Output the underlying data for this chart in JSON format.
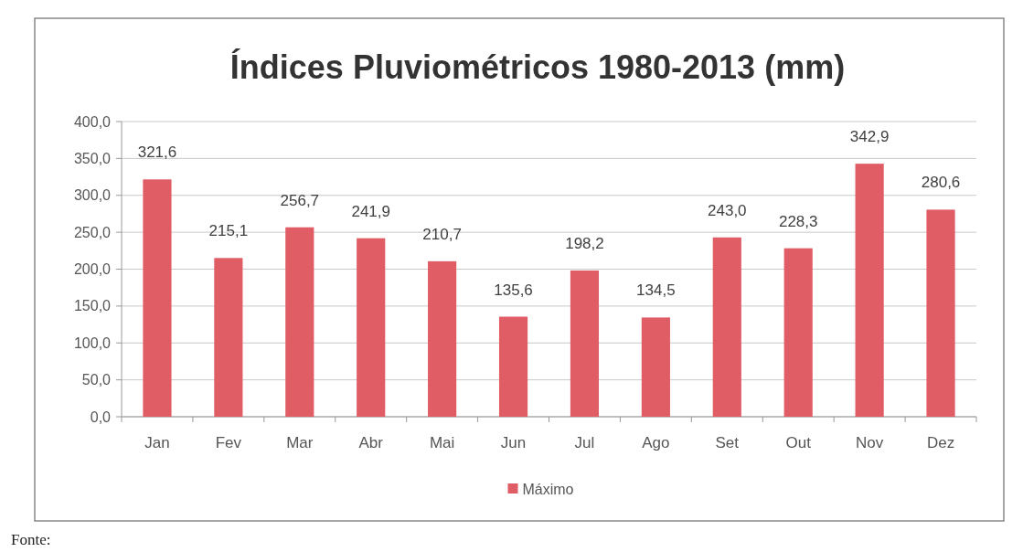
{
  "chart_data": {
    "type": "bar",
    "title": "Índices Pluviométricos 1980-2013 (mm)",
    "categories": [
      "Jan",
      "Fev",
      "Mar",
      "Abr",
      "Mai",
      "Jun",
      "Jul",
      "Ago",
      "Set",
      "Out",
      "Nov",
      "Dez"
    ],
    "series": [
      {
        "name": "Máximo",
        "color": "#e05d66",
        "values": [
          321.6,
          215.1,
          256.7,
          241.9,
          210.7,
          135.6,
          198.2,
          134.5,
          243.0,
          228.3,
          342.9,
          280.6
        ],
        "value_labels": [
          "321,6",
          "215,1",
          "256,7",
          "241,9",
          "210,7",
          "135,6",
          "198,2",
          "134,5",
          "243,0",
          "228,3",
          "342,9",
          "280,6"
        ]
      }
    ],
    "ylim": [
      0,
      400
    ],
    "yticks": [
      {
        "value": 0,
        "label": "0,0"
      },
      {
        "value": 50,
        "label": "50,0"
      },
      {
        "value": 100,
        "label": "100,0"
      },
      {
        "value": 150,
        "label": "150,0"
      },
      {
        "value": 200,
        "label": "200,0"
      },
      {
        "value": 250,
        "label": "250,0"
      },
      {
        "value": 300,
        "label": "300,0"
      },
      {
        "value": 350,
        "label": "350,0"
      },
      {
        "value": 400,
        "label": "400,0"
      }
    ],
    "grid": "y",
    "legend": "bottom",
    "annotations": [
      "Fonte:"
    ]
  }
}
